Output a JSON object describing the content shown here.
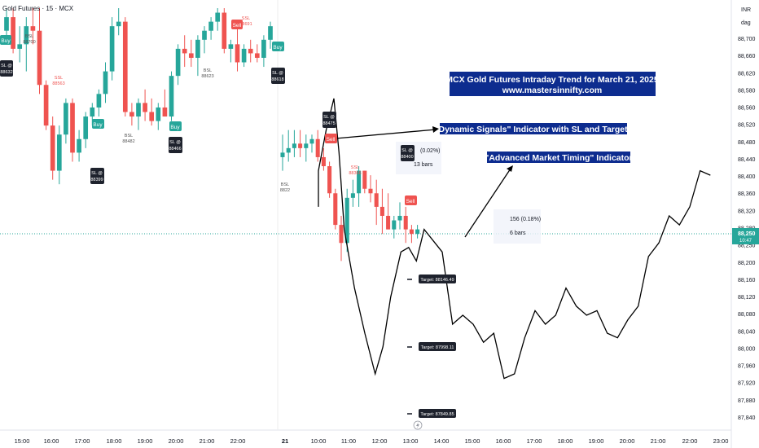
{
  "header": {
    "symbol_title": "Gold Futures · 15 · MCX"
  },
  "scale": {
    "currency": "INR",
    "mode": "dag"
  },
  "price_tag": {
    "price": "88,250",
    "countdown": "10:47",
    "color": "#26a69a"
  },
  "chart_data": {
    "type": "candlestick",
    "title": "MCX Gold Futures Intraday Trend for March 21, 2025",
    "subtitle": "www.mastersinnifty.com",
    "ylim": [
      87820,
      88740
    ],
    "y_ticks": [
      "88,700",
      "88,660",
      "88,620",
      "88,580",
      "88,560",
      "88,520",
      "88,480",
      "88,440",
      "88,400",
      "88,360",
      "88,320",
      "88,280",
      "88,250",
      "88,200",
      "88,160",
      "88,120",
      "88,080",
      "88,040",
      "88,000",
      "87,960",
      "87,920",
      "87,880",
      "87,840"
    ],
    "x_ticks": [
      "15:00",
      "16:00",
      "17:00",
      "18:00",
      "19:00",
      "20:00",
      "21:00",
      "22:00",
      "21",
      "10:00",
      "11:00",
      "12:00",
      "13:00",
      "14:00",
      "15:00",
      "16:00",
      "17:00",
      "18:00",
      "19:00",
      "20:00",
      "21:00",
      "22:00",
      "23:00"
    ],
    "colors": {
      "up": "#26a69a",
      "down": "#ef5350",
      "projection": "#000000",
      "banner": "#0d2c8f"
    },
    "candles_day1": [
      {
        "o": 88690,
        "h": 88740,
        "l": 88680,
        "c": 88720
      },
      {
        "o": 88720,
        "h": 88740,
        "l": 88640,
        "c": 88650
      },
      {
        "o": 88650,
        "h": 88700,
        "l": 88620,
        "c": 88660
      },
      {
        "o": 88660,
        "h": 88720,
        "l": 88600,
        "c": 88700
      },
      {
        "o": 88700,
        "h": 88740,
        "l": 88660,
        "c": 88690
      },
      {
        "o": 88690,
        "h": 88740,
        "l": 88550,
        "c": 88570
      },
      {
        "o": 88570,
        "h": 88580,
        "l": 88470,
        "c": 88480
      },
      {
        "o": 88480,
        "h": 88500,
        "l": 88360,
        "c": 88380
      },
      {
        "o": 88380,
        "h": 88480,
        "l": 88350,
        "c": 88460
      },
      {
        "o": 88460,
        "h": 88540,
        "l": 88440,
        "c": 88530
      },
      {
        "o": 88530,
        "h": 88540,
        "l": 88400,
        "c": 88420
      },
      {
        "o": 88420,
        "h": 88470,
        "l": 88400,
        "c": 88450
      },
      {
        "o": 88450,
        "h": 88510,
        "l": 88430,
        "c": 88500
      },
      {
        "o": 88500,
        "h": 88530,
        "l": 88480,
        "c": 88520
      },
      {
        "o": 88520,
        "h": 88560,
        "l": 88500,
        "c": 88550
      },
      {
        "o": 88550,
        "h": 88620,
        "l": 88530,
        "c": 88600
      },
      {
        "o": 88600,
        "h": 88720,
        "l": 88580,
        "c": 88700
      },
      {
        "o": 88700,
        "h": 88740,
        "l": 88680,
        "c": 88710
      },
      {
        "o": 88710,
        "h": 88720,
        "l": 88500,
        "c": 88510
      },
      {
        "o": 88510,
        "h": 88530,
        "l": 88480,
        "c": 88500
      },
      {
        "o": 88500,
        "h": 88540,
        "l": 88470,
        "c": 88530
      },
      {
        "o": 88530,
        "h": 88560,
        "l": 88490,
        "c": 88510
      },
      {
        "o": 88510,
        "h": 88540,
        "l": 88480,
        "c": 88490
      },
      {
        "o": 88490,
        "h": 88530,
        "l": 88470,
        "c": 88520
      },
      {
        "o": 88520,
        "h": 88560,
        "l": 88500,
        "c": 88500
      },
      {
        "o": 88500,
        "h": 88600,
        "l": 88490,
        "c": 88590
      },
      {
        "o": 88590,
        "h": 88660,
        "l": 88570,
        "c": 88650
      },
      {
        "o": 88650,
        "h": 88680,
        "l": 88610,
        "c": 88640
      },
      {
        "o": 88640,
        "h": 88670,
        "l": 88610,
        "c": 88630
      },
      {
        "o": 88630,
        "h": 88680,
        "l": 88590,
        "c": 88670
      },
      {
        "o": 88670,
        "h": 88700,
        "l": 88640,
        "c": 88690
      },
      {
        "o": 88690,
        "h": 88720,
        "l": 88670,
        "c": 88710
      },
      {
        "o": 88710,
        "h": 88740,
        "l": 88690,
        "c": 88730
      },
      {
        "o": 88730,
        "h": 88740,
        "l": 88640,
        "c": 88650
      },
      {
        "o": 88650,
        "h": 88670,
        "l": 88620,
        "c": 88660
      },
      {
        "o": 88660,
        "h": 88700,
        "l": 88600,
        "c": 88620
      },
      {
        "o": 88620,
        "h": 88660,
        "l": 88610,
        "c": 88650
      },
      {
        "o": 88650,
        "h": 88670,
        "l": 88620,
        "c": 88640
      },
      {
        "o": 88640,
        "h": 88660,
        "l": 88620,
        "c": 88630
      },
      {
        "o": 88630,
        "h": 88680,
        "l": 88610,
        "c": 88670
      },
      {
        "o": 88670,
        "h": 88710,
        "l": 88650,
        "c": 88700
      }
    ],
    "candles_day2": [
      {
        "o": 88410,
        "h": 88460,
        "l": 88380,
        "c": 88420
      },
      {
        "o": 88420,
        "h": 88470,
        "l": 88400,
        "c": 88430
      },
      {
        "o": 88430,
        "h": 88470,
        "l": 88410,
        "c": 88440
      },
      {
        "o": 88440,
        "h": 88470,
        "l": 88410,
        "c": 88430
      },
      {
        "o": 88430,
        "h": 88460,
        "l": 88400,
        "c": 88440
      },
      {
        "o": 88440,
        "h": 88460,
        "l": 88420,
        "c": 88450
      },
      {
        "o": 88450,
        "h": 88470,
        "l": 88400,
        "c": 88410
      },
      {
        "o": 88410,
        "h": 88430,
        "l": 88380,
        "c": 88390
      },
      {
        "o": 88390,
        "h": 88400,
        "l": 88320,
        "c": 88330
      },
      {
        "o": 88330,
        "h": 88340,
        "l": 88250,
        "c": 88260
      },
      {
        "o": 88260,
        "h": 88280,
        "l": 88180,
        "c": 88220
      },
      {
        "o": 88220,
        "h": 88340,
        "l": 88200,
        "c": 88320
      },
      {
        "o": 88320,
        "h": 88360,
        "l": 88300,
        "c": 88330
      },
      {
        "o": 88330,
        "h": 88390,
        "l": 88300,
        "c": 88380
      },
      {
        "o": 88380,
        "h": 88380,
        "l": 88330,
        "c": 88340
      },
      {
        "o": 88340,
        "h": 88370,
        "l": 88310,
        "c": 88330
      },
      {
        "o": 88330,
        "h": 88360,
        "l": 88260,
        "c": 88300
      },
      {
        "o": 88300,
        "h": 88340,
        "l": 88240,
        "c": 88280
      },
      {
        "o": 88280,
        "h": 88330,
        "l": 88250,
        "c": 88250
      },
      {
        "o": 88250,
        "h": 88280,
        "l": 88230,
        "c": 88270
      },
      {
        "o": 88270,
        "h": 88310,
        "l": 88250,
        "c": 88280
      },
      {
        "o": 88280,
        "h": 88300,
        "l": 88220,
        "c": 88250
      },
      {
        "o": 88250,
        "h": 88260,
        "l": 88220,
        "c": 88240
      },
      {
        "o": 88240,
        "h": 88260,
        "l": 88230,
        "c": 88250
      }
    ],
    "projection_path": [
      [
        "10:00",
        88300
      ],
      [
        "10:00",
        88380
      ],
      [
        "10:15",
        88470
      ],
      [
        "10:30",
        88540
      ],
      [
        "10:40",
        88420
      ],
      [
        "10:50",
        88250
      ],
      [
        "11:10",
        88120
      ],
      [
        "11:30",
        88020
      ],
      [
        "11:50",
        87930
      ],
      [
        "12:05",
        87990
      ],
      [
        "12:20",
        88100
      ],
      [
        "12:40",
        88200
      ],
      [
        "12:55",
        88210
      ],
      [
        "13:10",
        88180
      ],
      [
        "13:25",
        88250
      ],
      [
        "14:00",
        88200
      ],
      [
        "14:20",
        88040
      ],
      [
        "14:40",
        88060
      ],
      [
        "15:00",
        88040
      ],
      [
        "15:20",
        88000
      ],
      [
        "15:40",
        88020
      ],
      [
        "16:00",
        87920
      ],
      [
        "16:20",
        87930
      ],
      [
        "16:40",
        88010
      ],
      [
        "17:00",
        88070
      ],
      [
        "17:20",
        88040
      ],
      [
        "17:40",
        88060
      ],
      [
        "18:00",
        88120
      ],
      [
        "18:20",
        88080
      ],
      [
        "18:40",
        88060
      ],
      [
        "19:00",
        88070
      ],
      [
        "19:20",
        88020
      ],
      [
        "19:40",
        88010
      ],
      [
        "20:00",
        88050
      ],
      [
        "20:20",
        88080
      ],
      [
        "20:40",
        88190
      ],
      [
        "21:00",
        88220
      ],
      [
        "21:20",
        88280
      ],
      [
        "21:40",
        88260
      ],
      [
        "22:00",
        88300
      ],
      [
        "22:20",
        88380
      ],
      [
        "22:40",
        88370
      ]
    ]
  },
  "annotations": {
    "banner_title": "MCX Gold Futures Intraday Trend for March 21, 2025",
    "banner_url": "www.mastersinnifty.com",
    "callout_signals": "\"Dynamic Signals\" Indicator with SL and Targets",
    "callout_timing": "\"Advanced Market Timing\" Indicator"
  },
  "signals": [
    {
      "kind": "buy",
      "text": "Buy"
    },
    {
      "kind": "sl",
      "line1": "SL @",
      "line2": "88632"
    },
    {
      "kind": "bsl",
      "line1": "BSL",
      "line2": "88700"
    },
    {
      "kind": "ssl",
      "line1": "SSL",
      "line2": "88563"
    },
    {
      "kind": "buy",
      "text": "Buy"
    },
    {
      "kind": "sl",
      "line1": "SL @",
      "line2": "88399"
    },
    {
      "kind": "bsl",
      "line1": "BSL",
      "line2": "88482"
    },
    {
      "kind": "buy",
      "text": "Buy"
    },
    {
      "kind": "sl",
      "line1": "SL @",
      "line2": "88466"
    },
    {
      "kind": "bsl",
      "line1": "BSL",
      "line2": "88623"
    },
    {
      "kind": "ssl",
      "line1": "SSL",
      "line2": "88691"
    },
    {
      "kind": "sell",
      "text": "Sell"
    },
    {
      "kind": "buy",
      "text": "Buy"
    },
    {
      "kind": "sl",
      "line1": "SL @",
      "line2": "88618"
    },
    {
      "kind": "sl",
      "line1": "SL @",
      "line2": "88475"
    },
    {
      "kind": "sell",
      "text": "Sell"
    },
    {
      "kind": "bsl",
      "line1": "BSL",
      "line2": "8822"
    },
    {
      "kind": "sl",
      "line1": "SL @",
      "line2": "88400"
    },
    {
      "kind": "ssl",
      "line1": "SSL",
      "line2": "88366"
    },
    {
      "kind": "sell",
      "text": "Sell"
    }
  ],
  "measures": [
    {
      "line1": "(0.02%)",
      "line2": "13 bars"
    },
    {
      "line1": "156 (0.18%)",
      "line2": "6 bars"
    }
  ],
  "targets": [
    {
      "text": "Target: 88146.49"
    },
    {
      "text": "Target: 87998.11"
    },
    {
      "text": "Target: 87849.85"
    }
  ]
}
